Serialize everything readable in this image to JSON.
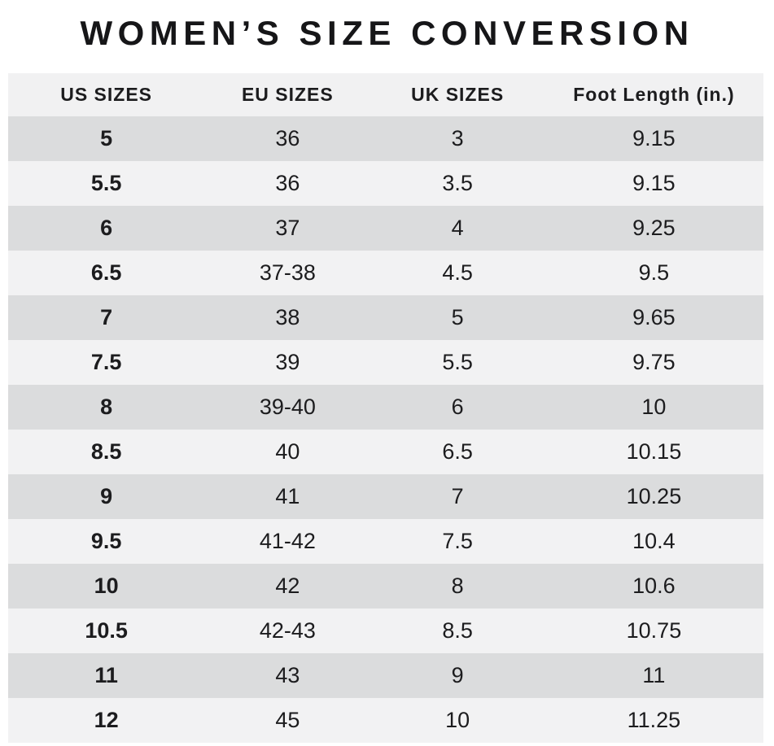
{
  "title": "WOMEN’S SIZE CONVERSION",
  "table": {
    "headers": [
      "US SIZES",
      "EU SIZES",
      "UK SIZES",
      "Foot Length (in.)"
    ],
    "rows": [
      [
        "5",
        "36",
        "3",
        "9.15"
      ],
      [
        "5.5",
        "36",
        "3.5",
        "9.15"
      ],
      [
        "6",
        "37",
        "4",
        "9.25"
      ],
      [
        "6.5",
        "37-38",
        "4.5",
        "9.5"
      ],
      [
        "7",
        "38",
        "5",
        "9.65"
      ],
      [
        "7.5",
        "39",
        "5.5",
        "9.75"
      ],
      [
        "8",
        "39-40",
        "6",
        "10"
      ],
      [
        "8.5",
        "40",
        "6.5",
        "10.15"
      ],
      [
        "9",
        "41",
        "7",
        "10.25"
      ],
      [
        "9.5",
        "41-42",
        "7.5",
        "10.4"
      ],
      [
        "10",
        "42",
        "8",
        "10.6"
      ],
      [
        "10.5",
        "42-43",
        "8.5",
        "10.75"
      ],
      [
        "11",
        "43",
        "9",
        "11"
      ],
      [
        "12",
        "45",
        "10",
        "11.25"
      ]
    ]
  },
  "colors": {
    "row_dark": "#dbdcdd",
    "row_light": "#f2f2f3",
    "header_bg": "#f1f1f2",
    "text": "#1c1c1e",
    "page_bg": "#ffffff"
  },
  "chart_data": {
    "type": "table",
    "title": "WOMEN’S SIZE CONVERSION",
    "columns": [
      "US SIZES",
      "EU SIZES",
      "UK SIZES",
      "Foot Length (in.)"
    ],
    "rows": [
      [
        "5",
        "36",
        "3",
        "9.15"
      ],
      [
        "5.5",
        "36",
        "3.5",
        "9.15"
      ],
      [
        "6",
        "37",
        "4",
        "9.25"
      ],
      [
        "6.5",
        "37-38",
        "4.5",
        "9.5"
      ],
      [
        "7",
        "38",
        "5",
        "9.65"
      ],
      [
        "7.5",
        "39",
        "5.5",
        "9.75"
      ],
      [
        "8",
        "39-40",
        "6",
        "10"
      ],
      [
        "8.5",
        "40",
        "6.5",
        "10.15"
      ],
      [
        "9",
        "41",
        "7",
        "10.25"
      ],
      [
        "9.5",
        "41-42",
        "7.5",
        "10.4"
      ],
      [
        "10",
        "42",
        "8",
        "10.6"
      ],
      [
        "10.5",
        "42-43",
        "8.5",
        "10.75"
      ],
      [
        "11",
        "43",
        "9",
        "11"
      ],
      [
        "12",
        "45",
        "10",
        "11.25"
      ]
    ],
    "layout_hints": {
      "striped": true,
      "first_column_bold": true,
      "all_cells_centered": true
    }
  }
}
